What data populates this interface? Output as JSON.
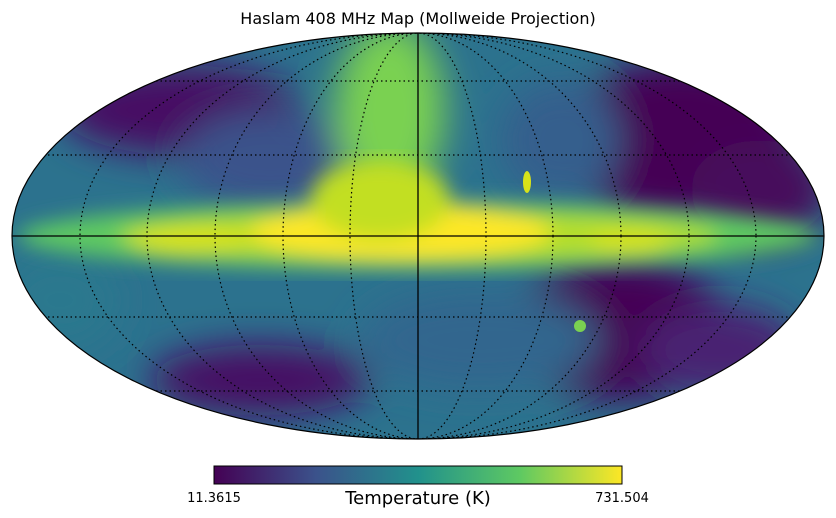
{
  "title": "Haslam 408 MHz Map (Mollweide Projection)",
  "colorbar": {
    "label": "Temperature (K)",
    "min_label": "11.3615",
    "max_label": "731.504",
    "colormap": "viridis"
  },
  "map": {
    "projection": "mollweide",
    "graticule": "dotted",
    "meridian_step_deg": 30,
    "parallel_step_deg": 30
  },
  "colors": {
    "viridis": [
      "#440154",
      "#3b528b",
      "#21918c",
      "#5ec962",
      "#fde725"
    ],
    "axis": "#000000"
  }
}
